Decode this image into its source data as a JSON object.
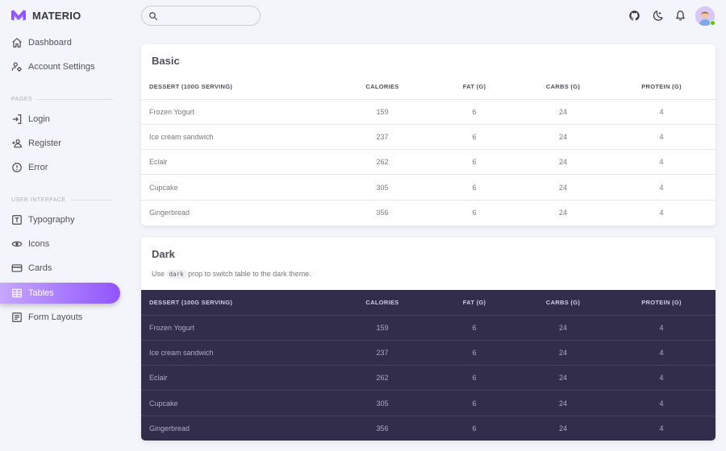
{
  "brand": {
    "name": "MATERIO",
    "color": "#9155fd"
  },
  "sidebar": {
    "items": [
      {
        "label": "Dashboard",
        "icon": "home-icon"
      },
      {
        "label": "Account Settings",
        "icon": "account-cog-icon"
      }
    ],
    "sections": [
      {
        "title": "PAGES",
        "items": [
          {
            "label": "Login",
            "icon": "login-icon"
          },
          {
            "label": "Register",
            "icon": "account-plus-icon"
          },
          {
            "label": "Error",
            "icon": "alert-circle-icon"
          }
        ]
      },
      {
        "title": "USER INTERFACE",
        "items": [
          {
            "label": "Typography",
            "icon": "format-letter-case-icon"
          },
          {
            "label": "Icons",
            "icon": "eye-icon"
          },
          {
            "label": "Cards",
            "icon": "credit-card-icon"
          },
          {
            "label": "Tables",
            "icon": "table-icon",
            "active": true
          },
          {
            "label": "Form Layouts",
            "icon": "form-select-icon"
          }
        ]
      }
    ]
  },
  "header": {
    "search": {
      "placeholder": "",
      "value": ""
    },
    "icons": [
      "github-icon",
      "theme-toggle-moon-icon",
      "bell-icon",
      "user-avatar"
    ]
  },
  "basic_table": {
    "title": "Basic",
    "headers": [
      "DESSERT (100G SERVING)",
      "CALORIES",
      "FAT (G)",
      "CARBS (G)",
      "PROTEIN (G)"
    ],
    "rows": [
      [
        "Frozen Yogurt",
        "159",
        "6",
        "24",
        "4"
      ],
      [
        "Ice cream sandwich",
        "237",
        "6",
        "24",
        "4"
      ],
      [
        "Eclair",
        "262",
        "6",
        "24",
        "4"
      ],
      [
        "Cupcake",
        "305",
        "6",
        "24",
        "4"
      ],
      [
        "Gingerbread",
        "356",
        "6",
        "24",
        "4"
      ]
    ]
  },
  "dark_table": {
    "title": "Dark",
    "subtitle_pre": "Use",
    "subtitle_code": "dark",
    "subtitle_post": "prop to switch table to the dark theme.",
    "headers": [
      "DESSERT (100G SERVING)",
      "CALORIES",
      "FAT (G)",
      "CARBS (G)",
      "PROTEIN (G)"
    ],
    "rows": [
      [
        "Frozen Yogurt",
        "159",
        "6",
        "24",
        "4"
      ],
      [
        "Ice cream sandwich",
        "237",
        "6",
        "24",
        "4"
      ],
      [
        "Eclair",
        "262",
        "6",
        "24",
        "4"
      ],
      [
        "Cupcake",
        "305",
        "6",
        "24",
        "4"
      ],
      [
        "Gingerbread",
        "356",
        "6",
        "24",
        "4"
      ]
    ]
  },
  "colors": {
    "primary": "#9155fd",
    "background": "#f4f5fa",
    "dark_table_bg": "#312d4b",
    "online": "#56ca00"
  }
}
